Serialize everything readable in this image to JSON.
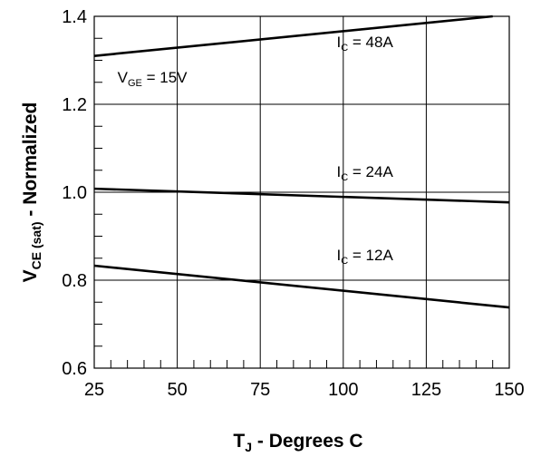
{
  "chart_data": {
    "type": "line",
    "xlabel": {
      "main": "T",
      "sub": "J",
      "rest": " - Degrees C"
    },
    "ylabel": {
      "main": "V",
      "sub": "CE (sat)",
      "rest": " - Normalized"
    },
    "xlim": [
      25,
      150
    ],
    "ylim": [
      0.6,
      1.4
    ],
    "x_ticks": [
      "25",
      "50",
      "75",
      "100",
      "125",
      "150"
    ],
    "y_ticks": [
      "0.6",
      "0.8",
      "1.0",
      "1.2",
      "1.4"
    ],
    "grid": true,
    "series": [
      {
        "name": "IC = 48A",
        "x": [
          25,
          145
        ],
        "y": [
          1.31,
          1.4
        ]
      },
      {
        "name": "IC = 24A",
        "x": [
          25,
          150
        ],
        "y": [
          1.008,
          0.977
        ]
      },
      {
        "name": "IC = 12A",
        "x": [
          25,
          150
        ],
        "y": [
          0.833,
          0.738
        ]
      }
    ],
    "annotations": [
      {
        "main": "I",
        "sub": "C",
        "rest": " = 48A",
        "x": 98,
        "y": 1.33
      },
      {
        "main": "I",
        "sub": "C",
        "rest": " = 24A",
        "x": 98,
        "y": 1.035
      },
      {
        "main": "I",
        "sub": "C",
        "rest": " = 12A",
        "x": 98,
        "y": 0.845
      },
      {
        "main": "V",
        "sub": "GE",
        "rest": " = 15V",
        "x": 32,
        "y": 1.25
      }
    ]
  }
}
